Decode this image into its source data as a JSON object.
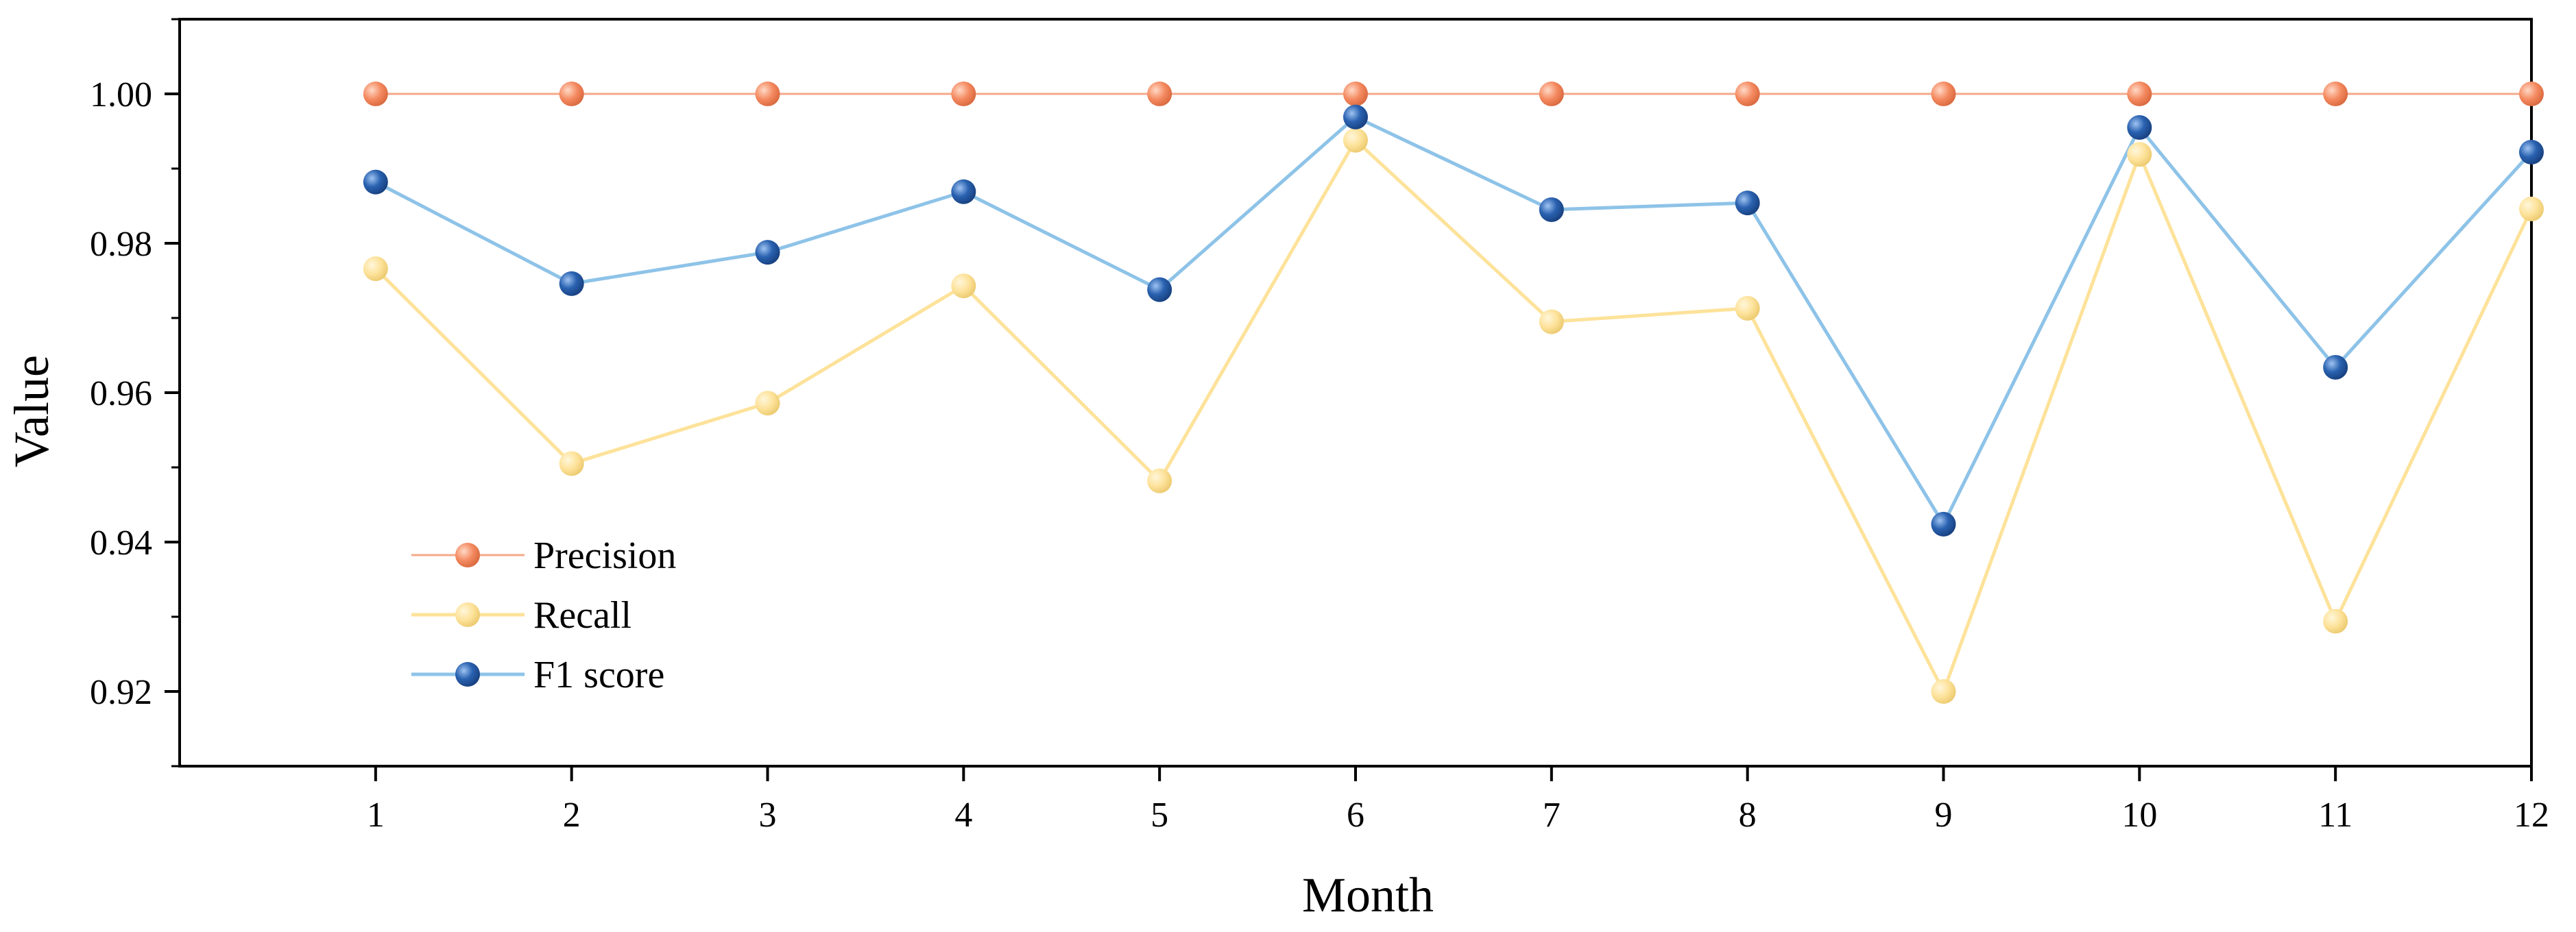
{
  "chart_data": {
    "type": "line",
    "xlabel": "Month",
    "ylabel": "Value",
    "x": [
      1,
      2,
      3,
      4,
      5,
      6,
      7,
      8,
      9,
      10,
      11,
      12
    ],
    "xlim": [
      0,
      12
    ],
    "ylim": [
      0.91,
      1.01
    ],
    "yticks": [
      0.92,
      0.94,
      0.96,
      0.98,
      1.0
    ],
    "ytick_labels": [
      "0.92",
      "0.94",
      "0.96",
      "0.98",
      "1.00"
    ],
    "xtick_labels": [
      "1",
      "2",
      "3",
      "4",
      "5",
      "6",
      "7",
      "8",
      "9",
      "10",
      "11",
      "12"
    ],
    "grid": false,
    "legend_position": "bottom-left",
    "series": [
      {
        "name": "Precision",
        "color": "#F4895F",
        "line_color": "#F4A98A",
        "values": [
          1.0,
          1.0,
          1.0,
          1.0,
          1.0,
          1.0,
          1.0,
          1.0,
          1.0,
          1.0,
          1.0,
          1.0
        ]
      },
      {
        "name": "Recall",
        "color": "#FDE29A",
        "line_color": "#FDE29A",
        "values": [
          0.9766,
          0.9505,
          0.9586,
          0.9743,
          0.9482,
          0.9938,
          0.9695,
          0.9713,
          0.92,
          0.9919,
          0.9294,
          0.9846
        ]
      },
      {
        "name": "F1 score",
        "color": "#2A62B0",
        "line_color": "#8EC3E8",
        "values": [
          0.9882,
          0.9746,
          0.9788,
          0.9869,
          0.9738,
          0.9969,
          0.9845,
          0.9854,
          0.9424,
          0.9955,
          0.9634,
          0.9922
        ]
      }
    ]
  }
}
